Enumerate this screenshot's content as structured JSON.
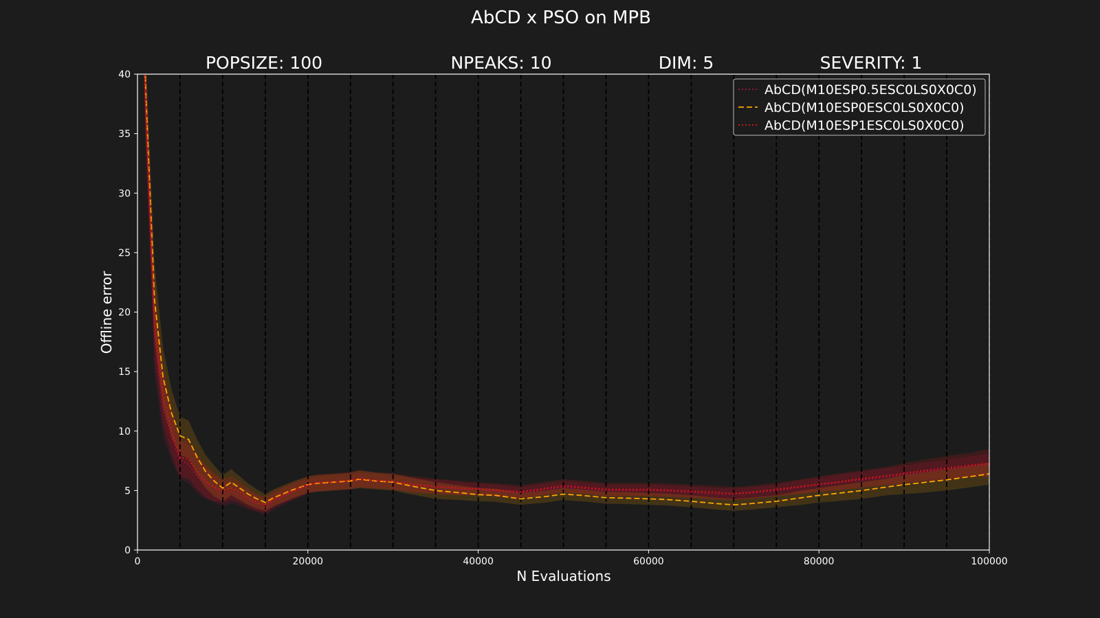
{
  "chart_data": {
    "type": "line",
    "title": "AbCD x PSO on MPB",
    "subtitles": [
      "POPSIZE: 100",
      "NPEAKS: 10",
      "DIM: 5",
      "SEVERITY: 1"
    ],
    "xlabel": "N Evaluations",
    "ylabel": "Offline error",
    "xlim": [
      0,
      100000
    ],
    "ylim": [
      0,
      40
    ],
    "xticks": [
      0,
      20000,
      40000,
      60000,
      80000,
      100000
    ],
    "yticks": [
      0,
      5,
      10,
      15,
      20,
      25,
      30,
      35,
      40
    ],
    "vlines": [
      5000,
      10000,
      15000,
      20000,
      25000,
      30000,
      35000,
      40000,
      45000,
      50000,
      55000,
      60000,
      65000,
      70000,
      75000,
      80000,
      85000,
      90000,
      95000,
      100000
    ],
    "legend_position": "top-right",
    "x": [
      0,
      1000,
      2000,
      3000,
      4000,
      5000,
      6000,
      7000,
      8000,
      9000,
      10000,
      11000,
      12000,
      13000,
      14000,
      15000,
      16000,
      18000,
      20000,
      21000,
      23000,
      25000,
      26000,
      28000,
      30000,
      32000,
      35000,
      38000,
      40000,
      42000,
      45000,
      48000,
      50000,
      52000,
      55000,
      58000,
      60000,
      62000,
      65000,
      68000,
      70000,
      72000,
      75000,
      78000,
      80000,
      82000,
      85000,
      88000,
      90000,
      92000,
      95000,
      98000,
      100000
    ],
    "series": [
      {
        "name": "AbCD(M10ESP0.5ESC0LS0X0C0)",
        "color": "#b01040",
        "dash": "dotted",
        "values": [
          60,
          36,
          18,
          12,
          9.5,
          7.6,
          7.2,
          6.2,
          5.6,
          5.2,
          4.7,
          4.9,
          4.6,
          4.2,
          3.9,
          3.6,
          4.1,
          4.8,
          5.4,
          5.6,
          5.7,
          5.8,
          5.9,
          5.8,
          5.7,
          5.5,
          5.3,
          5.15,
          5.1,
          5.0,
          4.8,
          5.1,
          5.3,
          5.2,
          5.0,
          5.0,
          5.0,
          4.95,
          4.85,
          4.7,
          4.7,
          4.8,
          5.0,
          5.3,
          5.5,
          5.65,
          5.9,
          6.15,
          6.35,
          6.55,
          6.8,
          7.05,
          7.2
        ],
        "upper": [
          63,
          39,
          21,
          14.5,
          11.5,
          9.2,
          8.8,
          7.8,
          7.0,
          6.3,
          5.7,
          5.8,
          5.4,
          5.0,
          4.6,
          4.3,
          4.8,
          5.5,
          6.0,
          6.2,
          6.3,
          6.4,
          6.5,
          6.4,
          6.3,
          6.1,
          5.9,
          5.7,
          5.6,
          5.5,
          5.3,
          5.6,
          5.8,
          5.7,
          5.5,
          5.5,
          5.5,
          5.45,
          5.35,
          5.2,
          5.2,
          5.3,
          5.5,
          5.9,
          6.1,
          6.3,
          6.6,
          6.9,
          7.1,
          7.3,
          7.6,
          7.9,
          8.1
        ],
        "lower": [
          57,
          33,
          15,
          9.5,
          7.5,
          6.0,
          5.6,
          4.8,
          4.3,
          4.0,
          3.7,
          3.9,
          3.7,
          3.4,
          3.2,
          2.9,
          3.4,
          4.1,
          4.7,
          4.9,
          5.0,
          5.1,
          5.2,
          5.2,
          5.1,
          4.9,
          4.7,
          4.6,
          4.6,
          4.5,
          4.3,
          4.6,
          4.8,
          4.7,
          4.5,
          4.5,
          4.5,
          4.45,
          4.35,
          4.2,
          4.2,
          4.3,
          4.5,
          4.7,
          4.9,
          5.0,
          5.2,
          5.4,
          5.6,
          5.8,
          6.0,
          6.2,
          6.3
        ]
      },
      {
        "name": "AbCD(M10ESP0ESC0LS0X0C0)",
        "color": "#ffa500",
        "dash": "dashed",
        "values": [
          62,
          38,
          21,
          14.5,
          11.5,
          9.6,
          9.3,
          7.8,
          6.6,
          5.8,
          5.2,
          5.7,
          5.2,
          4.7,
          4.3,
          4.0,
          4.4,
          5.0,
          5.5,
          5.6,
          5.7,
          5.8,
          5.95,
          5.8,
          5.7,
          5.4,
          5.0,
          4.8,
          4.65,
          4.6,
          4.3,
          4.5,
          4.7,
          4.6,
          4.4,
          4.35,
          4.3,
          4.25,
          4.1,
          3.9,
          3.8,
          3.9,
          4.1,
          4.4,
          4.6,
          4.75,
          5.0,
          5.3,
          5.5,
          5.65,
          5.9,
          6.2,
          6.4
        ],
        "upper": [
          65,
          41,
          24,
          17,
          13.5,
          11.2,
          10.9,
          9.3,
          8.0,
          7.1,
          6.3,
          6.8,
          6.2,
          5.6,
          5.1,
          4.7,
          5.1,
          5.7,
          6.2,
          6.3,
          6.4,
          6.5,
          6.7,
          6.5,
          6.4,
          6.1,
          5.7,
          5.4,
          5.2,
          5.15,
          4.8,
          5.0,
          5.2,
          5.1,
          4.9,
          4.85,
          4.8,
          4.75,
          4.6,
          4.4,
          4.3,
          4.4,
          4.6,
          5.0,
          5.2,
          5.4,
          5.7,
          6.0,
          6.3,
          6.5,
          6.8,
          7.1,
          7.3
        ],
        "lower": [
          59,
          35,
          18,
          12,
          9.5,
          8.0,
          7.7,
          6.3,
          5.2,
          4.5,
          4.1,
          4.6,
          4.2,
          3.8,
          3.5,
          3.3,
          3.7,
          4.3,
          4.8,
          4.9,
          5.0,
          5.1,
          5.2,
          5.1,
          5.0,
          4.7,
          4.3,
          4.2,
          4.1,
          4.05,
          3.8,
          4.0,
          4.2,
          4.1,
          3.9,
          3.85,
          3.8,
          3.75,
          3.6,
          3.4,
          3.3,
          3.4,
          3.6,
          3.8,
          4.0,
          4.1,
          4.3,
          4.6,
          4.7,
          4.8,
          5.0,
          5.3,
          5.5
        ]
      },
      {
        "name": "AbCD(M10ESP1ESC0LS0X0C0)",
        "color": "#e01515",
        "dash": "dotted",
        "values": [
          61,
          37,
          19,
          13,
          10,
          7.8,
          7.6,
          6.6,
          5.8,
          5.3,
          5.0,
          5.2,
          4.9,
          4.4,
          4.0,
          3.8,
          4.3,
          4.9,
          5.5,
          5.65,
          5.75,
          5.85,
          6.0,
          5.85,
          5.75,
          5.55,
          5.35,
          5.2,
          5.15,
          5.05,
          4.9,
          5.2,
          5.4,
          5.3,
          5.1,
          5.1,
          5.1,
          5.05,
          4.95,
          4.85,
          4.75,
          4.85,
          5.1,
          5.35,
          5.55,
          5.7,
          6.0,
          6.25,
          6.45,
          6.65,
          6.9,
          7.15,
          7.3
        ],
        "upper": [
          64,
          40,
          22,
          15.5,
          12,
          9.5,
          9.2,
          8.1,
          7.2,
          6.5,
          6.0,
          6.2,
          5.8,
          5.2,
          4.7,
          4.5,
          5.0,
          5.6,
          6.2,
          6.35,
          6.45,
          6.55,
          6.7,
          6.55,
          6.45,
          6.25,
          6.0,
          5.8,
          5.7,
          5.6,
          5.45,
          5.75,
          5.95,
          5.85,
          5.65,
          5.65,
          5.65,
          5.6,
          5.5,
          5.4,
          5.3,
          5.4,
          5.65,
          5.95,
          6.2,
          6.4,
          6.7,
          7.0,
          7.3,
          7.55,
          7.9,
          8.2,
          8.5
        ],
        "lower": [
          58,
          34,
          16,
          10.5,
          8.0,
          6.1,
          6.0,
          5.1,
          4.4,
          4.1,
          4.0,
          4.2,
          4.0,
          3.6,
          3.3,
          3.1,
          3.6,
          4.2,
          4.8,
          4.95,
          5.05,
          5.15,
          5.3,
          5.15,
          5.05,
          4.85,
          4.7,
          4.6,
          4.6,
          4.5,
          4.35,
          4.65,
          4.85,
          4.75,
          4.55,
          4.55,
          4.55,
          4.5,
          4.4,
          4.3,
          4.2,
          4.3,
          4.55,
          4.75,
          4.9,
          5.0,
          5.3,
          5.5,
          5.6,
          5.75,
          5.9,
          6.1,
          6.1
        ]
      }
    ]
  }
}
